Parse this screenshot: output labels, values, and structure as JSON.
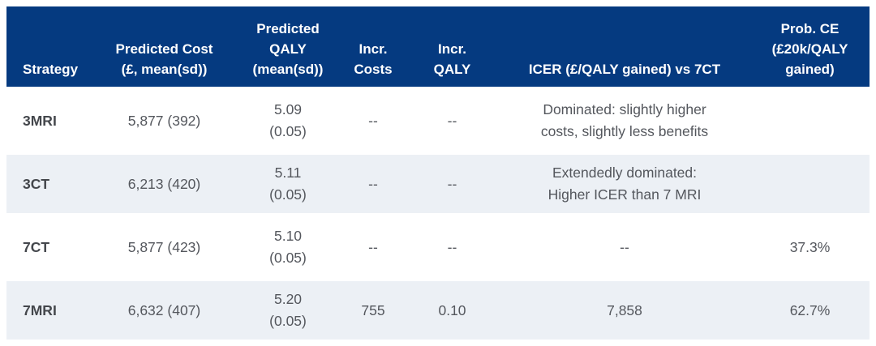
{
  "colors": {
    "header_bg": "#053a80",
    "header_text": "#ffffff",
    "row_alt_bg": "#ecf0f5",
    "body_text": "#54575d"
  },
  "chart_data": {
    "type": "table",
    "columns": [
      "Strategy",
      "Predicted Cost (£, mean(sd))",
      "Predicted QALY (mean(sd))",
      "Incr. Costs",
      "Incr. QALY",
      "ICER (£/QALY gained) vs 7CT",
      "Prob. CE (£20k/QALY gained)"
    ],
    "rows": [
      [
        "3MRI",
        "5,877 (392)",
        "5.09 (0.05)",
        "--",
        "--",
        "Dominated: slightly higher costs, slightly less benefits",
        ""
      ],
      [
        "3CT",
        "6,213 (420)",
        "5.11 (0.05)",
        "--",
        "--",
        "Extendedly dominated: Higher ICER than 7 MRI",
        ""
      ],
      [
        "7CT",
        "5,877 (423)",
        "5.10 (0.05)",
        "--",
        "--",
        "--",
        "37.3%"
      ],
      [
        "7MRI",
        "6,632 (407)",
        "5.20 (0.05)",
        "755",
        "0.10",
        "7,858",
        "62.7%"
      ]
    ]
  },
  "header": {
    "strategy": [
      "Strategy"
    ],
    "cost": [
      "Predicted Cost",
      "(£, mean(sd))"
    ],
    "qaly": [
      "Predicted",
      "QALY",
      "(mean(sd))"
    ],
    "incr_costs": [
      "Incr.",
      "Costs"
    ],
    "incr_qaly": [
      "Incr.",
      "QALY"
    ],
    "icer": [
      "ICER (£/QALY gained) vs 7CT"
    ],
    "prob_ce": [
      "Prob. CE",
      "(£20k/QALY",
      "gained)"
    ]
  },
  "rows": [
    {
      "strategy": "3MRI",
      "cost": "5,877 (392)",
      "qaly_mean": "5.09",
      "qaly_sd": "(0.05)",
      "incr_costs": "--",
      "incr_qaly": "--",
      "icer_line1": "Dominated: slightly higher",
      "icer_line2": "costs, slightly less benefits",
      "prob_ce": ""
    },
    {
      "strategy": "3CT",
      "cost": "6,213 (420)",
      "qaly_mean": "5.11",
      "qaly_sd": "(0.05)",
      "incr_costs": "--",
      "incr_qaly": "--",
      "icer_line1": "Extendedly dominated:",
      "icer_line2": "Higher ICER than 7 MRI",
      "prob_ce": ""
    },
    {
      "strategy": "7CT",
      "cost": "5,877 (423)",
      "qaly_mean": "5.10",
      "qaly_sd": "(0.05)",
      "incr_costs": "--",
      "incr_qaly": "--",
      "icer_line1": "--",
      "icer_line2": "",
      "prob_ce": "37.3%"
    },
    {
      "strategy": "7MRI",
      "cost": "6,632 (407)",
      "qaly_mean": "5.20",
      "qaly_sd": "(0.05)",
      "incr_costs": "755",
      "incr_qaly": "0.10",
      "icer_line1": "7,858",
      "icer_line2": "",
      "prob_ce": "62.7%"
    }
  ]
}
